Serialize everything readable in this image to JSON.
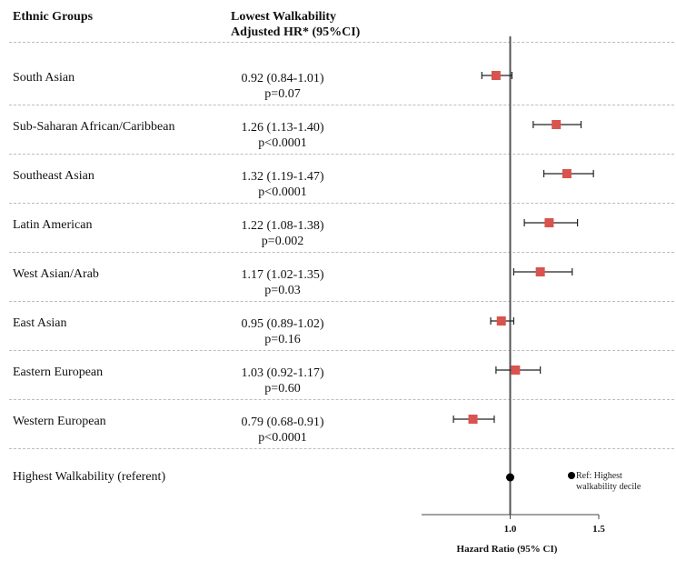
{
  "headers": {
    "groups": "Ethnic Groups",
    "hr_line1": "Lowest Walkability",
    "hr_line2": "Adjusted HR* (95%CI)"
  },
  "reference": {
    "label": "Highest Walkability (referent)",
    "note_line1": "Ref: Highest",
    "note_line2": "walkability decile"
  },
  "chart_data": {
    "type": "forest",
    "xlabel": "Hazard Ratio (95% CI)",
    "xlim": [
      0.5,
      1.5
    ],
    "ticks": [
      {
        "value": 1.0,
        "label": "1.0"
      },
      {
        "value": 1.5,
        "label": "1.5"
      }
    ],
    "reference_line": 1.0,
    "colors": {
      "estimate": "#d9534f",
      "reference": "#000000",
      "ci": "#222222"
    },
    "rows": [
      {
        "group": "South Asian",
        "hr_text": "0.92 (0.84-1.01)",
        "p_text": "p=0.07",
        "hr": 0.92,
        "lo": 0.84,
        "hi": 1.01
      },
      {
        "group": "Sub-Saharan African/Caribbean",
        "hr_text": "1.26 (1.13-1.40)",
        "p_text": "p<0.0001",
        "hr": 1.26,
        "lo": 1.13,
        "hi": 1.4
      },
      {
        "group": "Southeast Asian",
        "hr_text": "1.32 (1.19-1.47)",
        "p_text": "p<0.0001",
        "hr": 1.32,
        "lo": 1.19,
        "hi": 1.47
      },
      {
        "group": "Latin American",
        "hr_text": "1.22 (1.08-1.38)",
        "p_text": "p=0.002",
        "hr": 1.22,
        "lo": 1.08,
        "hi": 1.38
      },
      {
        "group": "West Asian/Arab",
        "hr_text": "1.17 (1.02-1.35)",
        "p_text": "p=0.03",
        "hr": 1.17,
        "lo": 1.02,
        "hi": 1.35
      },
      {
        "group": "East Asian",
        "hr_text": "0.95 (0.89-1.02)",
        "p_text": "p=0.16",
        "hr": 0.95,
        "lo": 0.89,
        "hi": 1.02
      },
      {
        "group": "Eastern European",
        "hr_text": "1.03 (0.92-1.17)",
        "p_text": "p=0.60",
        "hr": 1.03,
        "lo": 0.92,
        "hi": 1.17
      },
      {
        "group": "Western European",
        "hr_text": "0.79 (0.68-0.91)",
        "p_text": "p<0.0001",
        "hr": 0.79,
        "lo": 0.68,
        "hi": 0.91
      }
    ],
    "reference_point": {
      "hr": 1.0
    }
  }
}
